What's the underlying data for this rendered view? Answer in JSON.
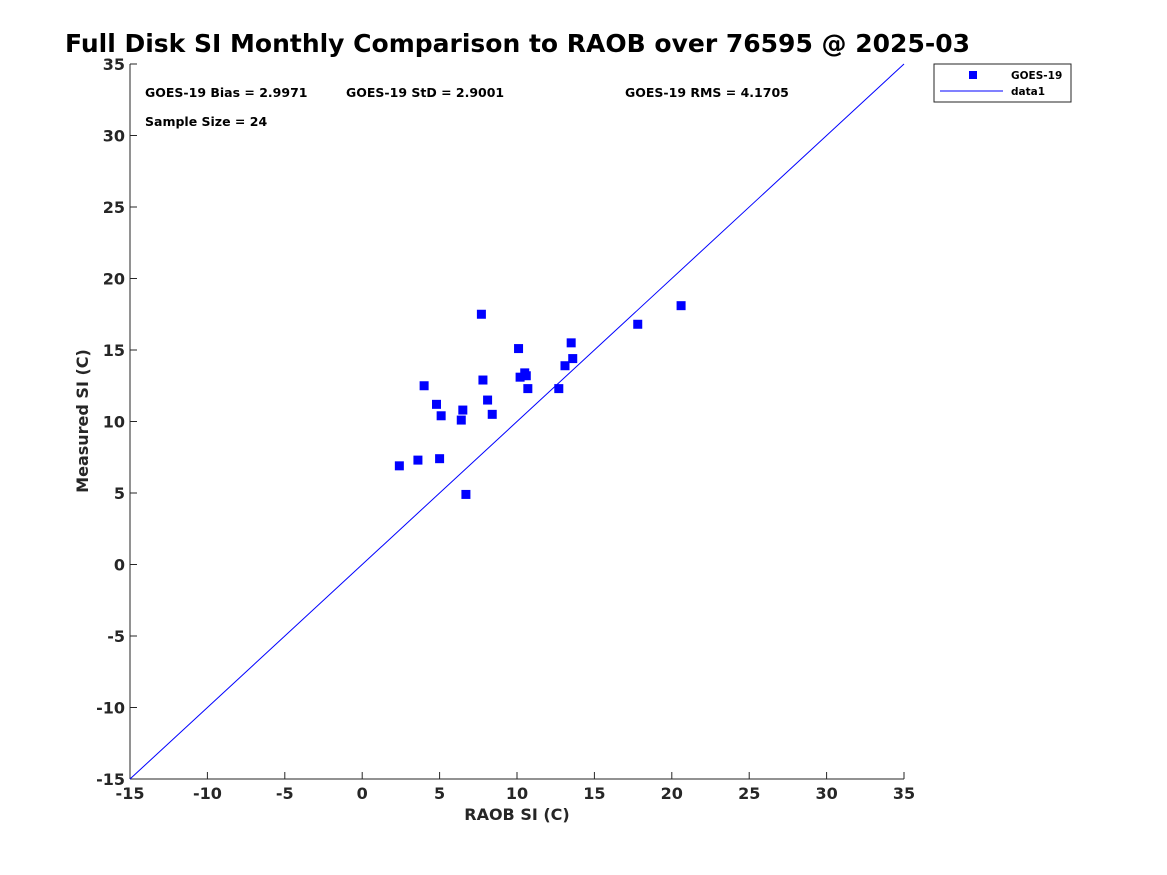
{
  "chart_data": {
    "type": "scatter",
    "title": "Full Disk SI Monthly Comparison to RAOB over 76595 @ 2025-03",
    "xlabel": "RAOB SI (C)",
    "ylabel": "Measured SI (C)",
    "xlim": [
      -15,
      35
    ],
    "ylim": [
      -15,
      35
    ],
    "xticks": [
      -15,
      -10,
      -5,
      0,
      5,
      10,
      15,
      20,
      25,
      30,
      35
    ],
    "yticks": [
      -15,
      -10,
      -5,
      0,
      5,
      10,
      15,
      20,
      25,
      30,
      35
    ],
    "grid": false,
    "legend_position": "outside-top-right",
    "marker_color": "#0000ff",
    "line_color": "#0000ff",
    "annotations": {
      "bias": "GOES-19 Bias = 2.9971",
      "std": "GOES-19 StD = 2.9001",
      "rms": "GOES-19 RMS = 4.1705",
      "sample_size": "Sample Size = 24"
    },
    "legend": [
      {
        "label": "GOES-19",
        "kind": "marker"
      },
      {
        "label": "data1",
        "kind": "line"
      }
    ],
    "series": [
      {
        "name": "GOES-19",
        "kind": "scatter",
        "points": [
          {
            "x": 2.4,
            "y": 6.9
          },
          {
            "x": 3.6,
            "y": 7.3
          },
          {
            "x": 4.0,
            "y": 12.5
          },
          {
            "x": 4.8,
            "y": 11.2
          },
          {
            "x": 5.0,
            "y": 7.4
          },
          {
            "x": 5.1,
            "y": 10.4
          },
          {
            "x": 6.4,
            "y": 10.1
          },
          {
            "x": 6.5,
            "y": 10.8
          },
          {
            "x": 6.7,
            "y": 4.9
          },
          {
            "x": 7.7,
            "y": 17.5
          },
          {
            "x": 7.8,
            "y": 12.9
          },
          {
            "x": 8.1,
            "y": 11.5
          },
          {
            "x": 8.4,
            "y": 10.5
          },
          {
            "x": 10.1,
            "y": 15.1
          },
          {
            "x": 10.2,
            "y": 13.1
          },
          {
            "x": 10.5,
            "y": 13.4
          },
          {
            "x": 10.6,
            "y": 13.2
          },
          {
            "x": 10.7,
            "y": 12.3
          },
          {
            "x": 12.7,
            "y": 12.3
          },
          {
            "x": 13.1,
            "y": 13.9
          },
          {
            "x": 13.5,
            "y": 15.5
          },
          {
            "x": 13.6,
            "y": 14.4
          },
          {
            "x": 17.8,
            "y": 16.8
          },
          {
            "x": 20.6,
            "y": 18.1
          }
        ]
      },
      {
        "name": "data1",
        "kind": "line",
        "points": [
          {
            "x": -15,
            "y": -15
          },
          {
            "x": 35,
            "y": 35
          }
        ]
      }
    ]
  }
}
